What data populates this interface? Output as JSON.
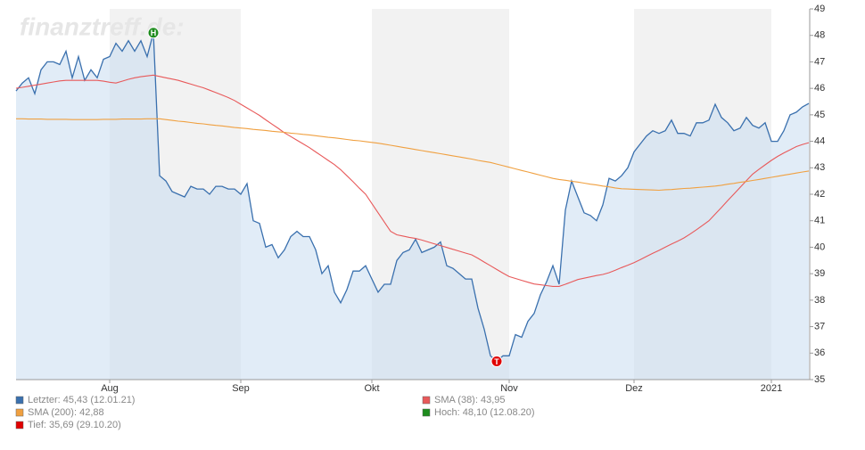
{
  "chart_data": {
    "type": "line",
    "watermark": "finanztreff.de:",
    "categories": [
      null,
      null,
      null,
      null,
      null,
      null,
      null,
      null,
      null,
      null,
      null,
      null,
      null,
      null,
      null,
      "Aug",
      null,
      null,
      null,
      null,
      null,
      null,
      null,
      null,
      null,
      null,
      null,
      null,
      null,
      null,
      null,
      null,
      null,
      null,
      null,
      null,
      "Sep",
      null,
      null,
      null,
      null,
      null,
      null,
      null,
      null,
      null,
      null,
      null,
      null,
      null,
      null,
      null,
      null,
      null,
      null,
      null,
      null,
      "Okt",
      null,
      null,
      null,
      null,
      null,
      null,
      null,
      null,
      null,
      null,
      null,
      null,
      null,
      null,
      null,
      null,
      null,
      null,
      null,
      null,
      null,
      "Nov",
      null,
      null,
      null,
      null,
      null,
      null,
      null,
      null,
      null,
      null,
      null,
      null,
      null,
      null,
      null,
      null,
      null,
      null,
      null,
      "Dez",
      null,
      null,
      null,
      null,
      null,
      null,
      null,
      null,
      null,
      null,
      null,
      null,
      null,
      null,
      null,
      null,
      null,
      null,
      null,
      null,
      null,
      "2021",
      null,
      null,
      null,
      null,
      null,
      null
    ],
    "series": [
      {
        "name": "Letzter: 45,43 (12.01.21)",
        "color": "#3a70ae",
        "area": true,
        "area_color": "#c9dcf0",
        "values": [
          45.9,
          46.2,
          46.4,
          45.8,
          46.7,
          47.0,
          47.0,
          46.9,
          47.4,
          46.4,
          47.2,
          46.3,
          46.7,
          46.4,
          47.1,
          47.2,
          47.7,
          47.4,
          47.8,
          47.4,
          47.8,
          47.2,
          48.1,
          42.7,
          42.5,
          42.1,
          42.0,
          41.9,
          42.3,
          42.2,
          42.2,
          42.0,
          42.3,
          42.3,
          42.2,
          42.2,
          42.0,
          42.4,
          41.0,
          40.9,
          40.0,
          40.1,
          39.6,
          39.9,
          40.4,
          40.6,
          40.4,
          40.4,
          39.9,
          39.0,
          39.3,
          38.3,
          37.9,
          38.4,
          39.1,
          39.1,
          39.3,
          38.8,
          38.3,
          38.6,
          38.6,
          39.5,
          39.8,
          39.9,
          40.3,
          39.8,
          39.9,
          40.0,
          40.2,
          39.3,
          39.2,
          39.0,
          38.8,
          38.8,
          37.7,
          36.9,
          35.9,
          35.69,
          35.9,
          35.9,
          36.7,
          36.6,
          37.2,
          37.5,
          38.2,
          38.7,
          39.3,
          38.6,
          41.4,
          42.5,
          41.9,
          41.3,
          41.2,
          41.0,
          41.6,
          42.6,
          42.5,
          42.7,
          43.0,
          43.6,
          43.9,
          44.2,
          44.4,
          44.3,
          44.4,
          44.8,
          44.3,
          44.3,
          44.2,
          44.7,
          44.7,
          44.8,
          45.4,
          44.9,
          44.7,
          44.4,
          44.5,
          44.9,
          44.6,
          44.5,
          44.7,
          44.0,
          44.0,
          44.4,
          45.0,
          45.1,
          45.3,
          45.43
        ]
      },
      {
        "name": "SMA (38): 43,95",
        "color": "#e8595a",
        "values": [
          46.0,
          46.04,
          46.08,
          46.12,
          46.16,
          46.2,
          46.24,
          46.28,
          46.3,
          46.3,
          46.3,
          46.3,
          46.3,
          46.3,
          46.27,
          46.23,
          46.2,
          46.27,
          46.34,
          46.4,
          46.44,
          46.47,
          46.5,
          46.45,
          46.4,
          46.35,
          46.3,
          46.23,
          46.16,
          46.09,
          46.02,
          45.93,
          45.84,
          45.75,
          45.65,
          45.54,
          45.4,
          45.26,
          45.12,
          44.98,
          44.81,
          44.65,
          44.49,
          44.32,
          44.18,
          44.04,
          43.9,
          43.76,
          43.6,
          43.44,
          43.28,
          43.12,
          42.93,
          42.7,
          42.47,
          42.23,
          42.0,
          41.65,
          41.3,
          40.95,
          40.6,
          40.47,
          40.42,
          40.37,
          40.33,
          40.27,
          40.2,
          40.13,
          40.06,
          39.99,
          39.92,
          39.85,
          39.78,
          39.71,
          39.58,
          39.44,
          39.3,
          39.16,
          39.02,
          38.89,
          38.82,
          38.75,
          38.68,
          38.61,
          38.58,
          38.55,
          38.52,
          38.52,
          38.6,
          38.69,
          38.78,
          38.83,
          38.88,
          38.93,
          38.97,
          39.04,
          39.13,
          39.23,
          39.32,
          39.42,
          39.53,
          39.65,
          39.77,
          39.88,
          40.0,
          40.12,
          40.23,
          40.35,
          40.5,
          40.66,
          40.83,
          41.0,
          41.25,
          41.5,
          41.76,
          42.01,
          42.26,
          42.51,
          42.76,
          42.94,
          43.11,
          43.28,
          43.43,
          43.56,
          43.68,
          43.8,
          43.88,
          43.95
        ]
      },
      {
        "name": "SMA (200): 42,88",
        "color": "#f0a040",
        "values": [
          44.85,
          44.85,
          44.84,
          44.84,
          44.84,
          44.83,
          44.83,
          44.83,
          44.83,
          44.82,
          44.82,
          44.82,
          44.82,
          44.82,
          44.83,
          44.83,
          44.83,
          44.84,
          44.84,
          44.84,
          44.84,
          44.85,
          44.85,
          44.85,
          44.82,
          44.79,
          44.76,
          44.74,
          44.71,
          44.68,
          44.66,
          44.63,
          44.6,
          44.58,
          44.55,
          44.52,
          44.5,
          44.48,
          44.45,
          44.43,
          44.41,
          44.38,
          44.36,
          44.34,
          44.31,
          44.29,
          44.26,
          44.24,
          44.21,
          44.18,
          44.15,
          44.13,
          44.1,
          44.07,
          44.04,
          44.02,
          43.99,
          43.96,
          43.93,
          43.89,
          43.85,
          43.81,
          43.77,
          43.73,
          43.69,
          43.65,
          43.61,
          43.57,
          43.53,
          43.49,
          43.45,
          43.41,
          43.37,
          43.33,
          43.28,
          43.24,
          43.2,
          43.14,
          43.08,
          43.02,
          42.96,
          42.9,
          42.84,
          42.78,
          42.72,
          42.66,
          42.6,
          42.56,
          42.53,
          42.49,
          42.46,
          42.42,
          42.38,
          42.35,
          42.31,
          42.28,
          42.24,
          42.21,
          42.2,
          42.19,
          42.18,
          42.17,
          42.16,
          42.15,
          42.17,
          42.18,
          42.2,
          42.22,
          42.23,
          42.25,
          42.27,
          42.29,
          42.31,
          42.34,
          42.38,
          42.41,
          42.45,
          42.48,
          42.52,
          42.56,
          42.6,
          42.64,
          42.68,
          42.72,
          42.76,
          42.8,
          42.84,
          42.88
        ]
      }
    ],
    "annotations": [
      {
        "label": "H",
        "text": "Hoch: 48,10 (12.08.20)",
        "color": "#1e8c1e",
        "value": 48.1
      },
      {
        "label": "T",
        "text": "Tief: 35,69 (29.10.20)",
        "color": "#e00000",
        "value": 35.69
      }
    ],
    "ylim": [
      35,
      49
    ],
    "yticks": [
      35,
      36,
      37,
      38,
      39,
      40,
      41,
      42,
      43,
      44,
      45,
      46,
      47,
      48,
      49
    ],
    "grid": false,
    "band_color": "#f2f2f2"
  }
}
